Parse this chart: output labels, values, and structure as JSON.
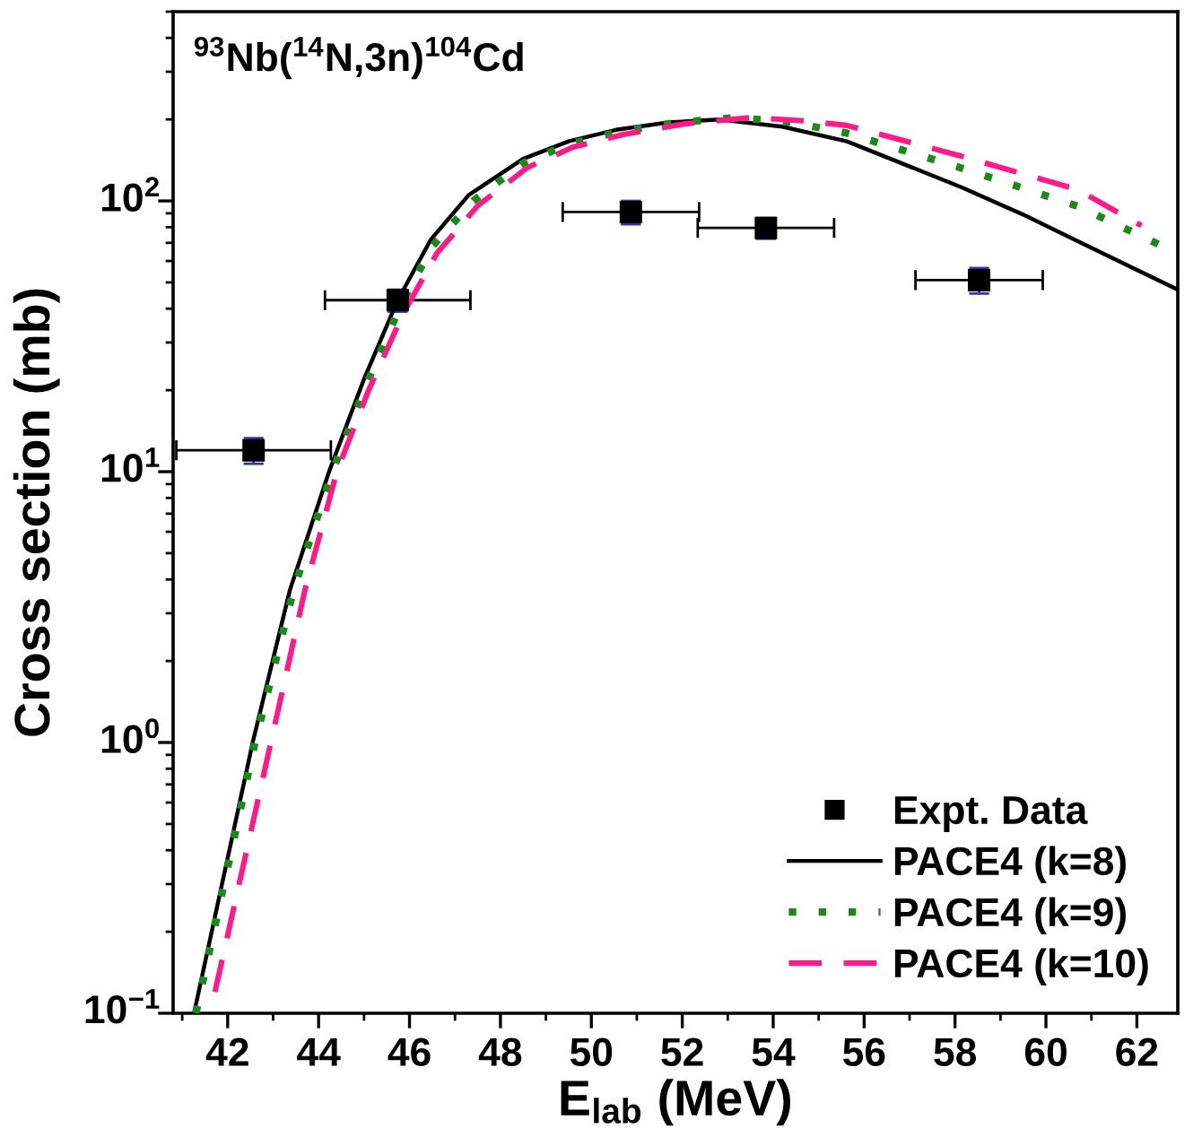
{
  "chart_data": {
    "type": "line",
    "xlabel": "E$_{lab}$ (MeV)",
    "ylabel": "Cross section (mb)",
    "annotations": [
      "$^{93}$Nb($^{14}$N,3n)$^{104}$Cd"
    ],
    "log": "y",
    "xlim": [
      40.8,
      62.9
    ],
    "ylim": [
      0.1,
      500
    ],
    "xticks": [
      42,
      44,
      46,
      48,
      50,
      52,
      54,
      56,
      58,
      60,
      62
    ],
    "yticks": [
      {
        "value": 0.1,
        "label": "10$^{−1}$"
      },
      {
        "value": 1,
        "label": "10$^{0}$"
      },
      {
        "value": 10,
        "label": "10$^{1}$"
      },
      {
        "value": 100,
        "label": "10$^{2}$"
      }
    ],
    "grid": false,
    "legend": "bottom right",
    "series": [
      {
        "name": "Expt. Data",
        "type": "scatter",
        "marker": "square",
        "color": "#000000",
        "x": [
          42.57,
          45.74,
          50.87,
          53.84,
          58.53
        ],
        "values": [
          12,
          43,
          91,
          79.5,
          51
        ],
        "errors": [
          1.3,
          4,
          9,
          7,
          5.5
        ],
        "xerrors": [
          1.7,
          1.6,
          1.5,
          1.5,
          1.4
        ]
      },
      {
        "name": "PACE4 (k=8)",
        "line_style": "solid",
        "color": "#000000",
        "x": [
          41.26,
          42.55,
          43.37,
          44.23,
          45.0,
          45.74,
          46.47,
          47.3,
          48.5,
          49.5,
          50.54,
          51.7,
          52.82,
          54.2,
          55.62,
          58.16,
          59.5,
          60.7,
          62.9
        ],
        "values": [
          0.1,
          1,
          3.66,
          10,
          22,
          43,
          72,
          105,
          143,
          166,
          183,
          195,
          200,
          188,
          166,
          112,
          89,
          71,
          47
        ]
      },
      {
        "name": "PACE4 (k=9)",
        "line_style": "dotted",
        "color": "#1a8a1a",
        "x": [
          41.3,
          42.6,
          43.45,
          44.3,
          45.05,
          45.8,
          46.5,
          47.4,
          48.5,
          49.5,
          50.6,
          51.9,
          53.2,
          54.4,
          55.62,
          58.16,
          60.7,
          62.9
        ],
        "values": [
          0.1,
          1,
          3.66,
          10,
          21,
          41,
          68,
          100,
          138,
          162,
          180,
          195,
          203,
          195,
          178,
          132,
          95.6,
          64
        ]
      },
      {
        "name": "PACE4 (k=10)",
        "line_style": "dashed",
        "color": "#ff1a8c",
        "x": [
          41.72,
          42.95,
          43.7,
          44.4,
          45.1,
          45.85,
          46.6,
          47.5,
          48.6,
          49.6,
          50.7,
          52.1,
          53.5,
          54.6,
          55.62,
          58.16,
          60.7,
          62.1
        ],
        "values": [
          0.12,
          1,
          3.66,
          10,
          20,
          38,
          64,
          96,
          133,
          158,
          176,
          193,
          203,
          198,
          190,
          146,
          110,
          81
        ]
      }
    ]
  }
}
